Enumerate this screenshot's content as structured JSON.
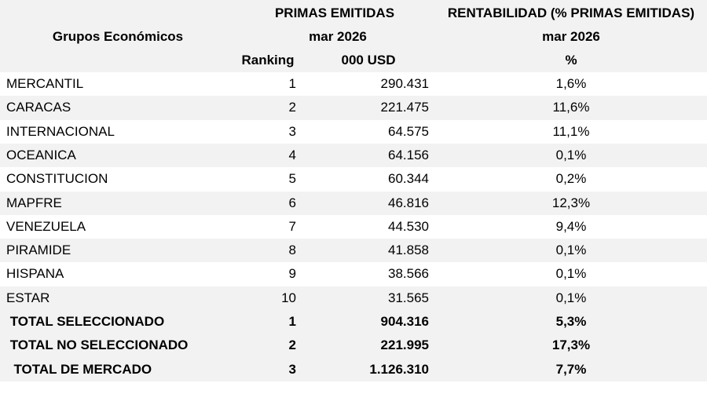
{
  "header": {
    "group_label": "Grupos Económicos",
    "primas_title": "PRIMAS EMITIDAS",
    "primas_period": "mar 2026",
    "ranking_label": "Ranking",
    "primas_units": "000 USD",
    "rent_title": "RENTABILIDAD (% PRIMAS EMITIDAS)",
    "rent_period": "mar 2026",
    "rent_units": "%"
  },
  "table": {
    "rows": [
      [
        "MERCANTIL",
        "1",
        "290.431",
        "1,6%"
      ],
      [
        "CARACAS",
        "2",
        "221.475",
        "11,6%"
      ],
      [
        "INTERNACIONAL",
        "3",
        "64.575",
        "11,1%"
      ],
      [
        "OCEANICA",
        "4",
        "64.156",
        "0,1%"
      ],
      [
        "CONSTITUCION",
        "5",
        "60.344",
        "0,2%"
      ],
      [
        "MAPFRE",
        "6",
        "46.816",
        "12,3%"
      ],
      [
        "VENEZUELA",
        "7",
        "44.530",
        "9,4%"
      ],
      [
        "PIRAMIDE",
        "8",
        "41.858",
        "0,1%"
      ],
      [
        "HISPANA",
        "9",
        "38.566",
        "0,1%"
      ],
      [
        "ESTAR",
        "10",
        "31.565",
        "0,1%"
      ]
    ],
    "totals": [
      [
        " TOTAL SELECCIONADO",
        "1",
        "904.316",
        "5,3%"
      ],
      [
        " TOTAL NO SELECCIONADO",
        "2",
        "221.995",
        "17,3%"
      ],
      [
        "  TOTAL DE MERCADO",
        "3",
        "1.126.310",
        "7,7%"
      ]
    ]
  }
}
